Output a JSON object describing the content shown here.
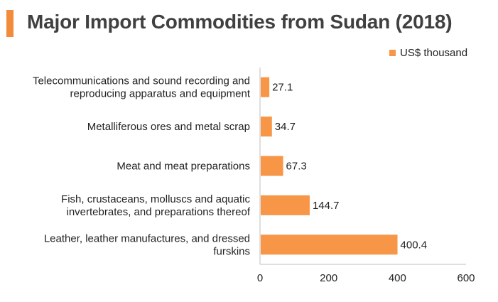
{
  "title": "Major Import Commodities from Sudan (2018)",
  "colors": {
    "accent": "#f28b3c",
    "bar": "#f79646",
    "text": "#222222",
    "axis": "#bfbfbf"
  },
  "legend": {
    "label": "US$ thousand"
  },
  "chart_data": {
    "type": "bar",
    "orientation": "horizontal",
    "title": "Major Import Commodities from Sudan (2018)",
    "xlabel": "",
    "ylabel": "",
    "xlim": [
      0,
      600
    ],
    "xticks": [
      "0",
      "200",
      "400",
      "600"
    ],
    "grid": false,
    "legend_position": "top-right",
    "categories": [
      [
        "Telecommunications and sound recording and",
        "reproducing apparatus and equipment"
      ],
      [
        "Metalliferous ores and metal scrap"
      ],
      [
        "Meat and meat preparations"
      ],
      [
        "Fish, crustaceans, molluscs and aquatic",
        "invertebrates, and preparations thereof"
      ],
      [
        "Leather, leather manufactures, and dressed",
        "furskins"
      ]
    ],
    "series": [
      {
        "name": "US$ thousand",
        "values": [
          27.1,
          34.7,
          67.3,
          144.7,
          400.4
        ]
      }
    ],
    "value_labels": [
      "27.1",
      "34.7",
      "67.3",
      "144.7",
      "400.4"
    ]
  }
}
